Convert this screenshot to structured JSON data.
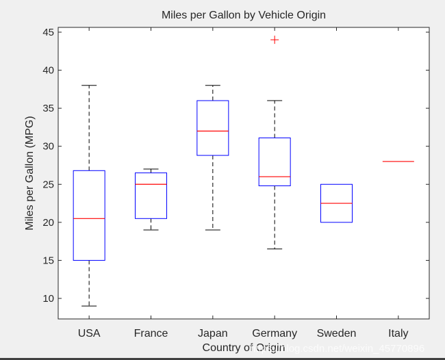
{
  "figure": {
    "background": "#f0f0f0",
    "watermark": "https://blog.csdn.net/weixin_45770896"
  },
  "chart_data": {
    "type": "boxplot",
    "title": "Miles per Gallon by Vehicle Origin",
    "xlabel": "Country of Origin",
    "ylabel": "Miles per Gallon (MPG)",
    "categories": [
      "USA",
      "France",
      "Japan",
      "Germany",
      "Sweden",
      "Italy"
    ],
    "ylim": [
      7.3,
      45.6
    ],
    "yticks": [
      10,
      15,
      20,
      25,
      30,
      35,
      40,
      45
    ],
    "grid": false,
    "legend": null,
    "colors": {
      "box": "#0000ff",
      "median": "#ff0000",
      "whisker": "#000000",
      "outlier": "#ff0000"
    },
    "boxes": [
      {
        "category": "USA",
        "whisker_low": 9,
        "q1": 15,
        "median": 20.5,
        "q3": 26.8,
        "whisker_high": 38,
        "outliers": []
      },
      {
        "category": "France",
        "whisker_low": 19,
        "q1": 20.5,
        "median": 25,
        "q3": 26.5,
        "whisker_high": 27,
        "outliers": []
      },
      {
        "category": "Japan",
        "whisker_low": 19,
        "q1": 28.8,
        "median": 32,
        "q3": 36,
        "whisker_high": 38,
        "outliers": []
      },
      {
        "category": "Germany",
        "whisker_low": 16.5,
        "q1": 24.8,
        "median": 26,
        "q3": 31.1,
        "whisker_high": 36,
        "outliers": [
          44
        ]
      },
      {
        "category": "Sweden",
        "whisker_low": 20,
        "q1": 20,
        "median": 22.5,
        "q3": 25,
        "whisker_high": 25,
        "outliers": []
      },
      {
        "category": "Italy",
        "whisker_low": 28,
        "q1": 28,
        "median": 28,
        "q3": 28,
        "whisker_high": 28,
        "outliers": []
      }
    ]
  }
}
